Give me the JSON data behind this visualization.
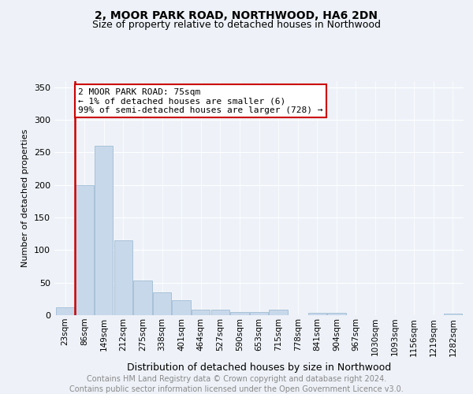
{
  "title": "2, MOOR PARK ROAD, NORTHWOOD, HA6 2DN",
  "subtitle": "Size of property relative to detached houses in Northwood",
  "xlabel": "Distribution of detached houses by size in Northwood",
  "ylabel": "Number of detached properties",
  "categories": [
    "23sqm",
    "86sqm",
    "149sqm",
    "212sqm",
    "275sqm",
    "338sqm",
    "401sqm",
    "464sqm",
    "527sqm",
    "590sqm",
    "653sqm",
    "715sqm",
    "778sqm",
    "841sqm",
    "904sqm",
    "967sqm",
    "1030sqm",
    "1093sqm",
    "1156sqm",
    "1219sqm",
    "1282sqm"
  ],
  "values": [
    12,
    200,
    260,
    115,
    53,
    35,
    23,
    9,
    9,
    5,
    5,
    9,
    0,
    4,
    4,
    0,
    0,
    0,
    0,
    0,
    3
  ],
  "bar_color": "#c8d8eb",
  "bar_edgecolor": "#a0bcd4",
  "annotation_line1": "2 MOOR PARK ROAD: 75sqm",
  "annotation_line2": "← 1% of detached houses are smaller (6)",
  "annotation_line3": "99% of semi-detached houses are larger (728) →",
  "vline_color": "#cc0000",
  "annotation_box_edgecolor": "#cc0000",
  "footer_line1": "Contains HM Land Registry data © Crown copyright and database right 2024.",
  "footer_line2": "Contains public sector information licensed under the Open Government Licence v3.0.",
  "background_color": "#eef2f8",
  "ylim": [
    0,
    360
  ],
  "yticks": [
    0,
    50,
    100,
    150,
    200,
    250,
    300,
    350
  ],
  "title_fontsize": 10,
  "subtitle_fontsize": 9,
  "xlabel_fontsize": 9,
  "ylabel_fontsize": 8,
  "tick_fontsize": 8,
  "annotation_fontsize": 8,
  "footer_fontsize": 7
}
